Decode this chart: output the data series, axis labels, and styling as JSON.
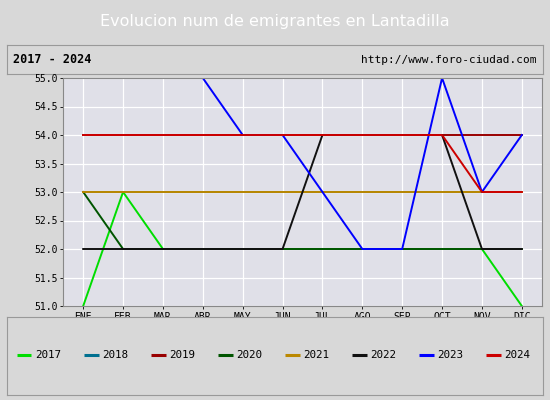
{
  "title": "Evolucion num de emigrantes en Lantadilla",
  "subtitle_left": "2017 - 2024",
  "subtitle_right": "http://www.foro-ciudad.com",
  "months": [
    "ENE",
    "FEB",
    "MAR",
    "ABR",
    "MAY",
    "JUN",
    "JUL",
    "AGO",
    "SEP",
    "OCT",
    "NOV",
    "DIC"
  ],
  "ylim": [
    51.0,
    55.0
  ],
  "yticks": [
    51.0,
    51.5,
    52.0,
    52.5,
    53.0,
    53.5,
    54.0,
    54.5,
    55.0
  ],
  "series": {
    "2017": {
      "color": "#00dd00",
      "data": [
        51.0,
        53.0,
        52.0,
        52.0,
        52.0,
        52.0,
        52.0,
        52.0,
        52.0,
        52.0,
        52.0,
        51.0
      ]
    },
    "2018": {
      "color": "#007090",
      "data": [
        53.0,
        53.0,
        53.0,
        53.0,
        53.0,
        53.0,
        53.0,
        53.0,
        53.0,
        53.0,
        53.0,
        53.0
      ]
    },
    "2019": {
      "color": "#990000",
      "data": [
        54.0,
        54.0,
        54.0,
        54.0,
        54.0,
        54.0,
        54.0,
        54.0,
        54.0,
        54.0,
        54.0,
        54.0
      ]
    },
    "2020": {
      "color": "#005500",
      "data": [
        53.0,
        52.0,
        52.0,
        52.0,
        52.0,
        52.0,
        52.0,
        52.0,
        52.0,
        52.0,
        52.0,
        52.0
      ]
    },
    "2021": {
      "color": "#bb8800",
      "data": [
        53.0,
        53.0,
        53.0,
        53.0,
        53.0,
        53.0,
        53.0,
        53.0,
        53.0,
        53.0,
        53.0,
        53.0
      ]
    },
    "2022": {
      "color": "#111111",
      "data": [
        52.0,
        52.0,
        52.0,
        52.0,
        52.0,
        52.0,
        54.0,
        54.0,
        54.0,
        54.0,
        52.0,
        52.0
      ]
    },
    "2023": {
      "color": "#0000ff",
      "data": [
        55.0,
        55.0,
        55.0,
        55.0,
        54.0,
        54.0,
        53.0,
        52.0,
        52.0,
        55.0,
        53.0,
        54.0
      ]
    },
    "2024": {
      "color": "#cc0000",
      "data": [
        54.0,
        54.0,
        54.0,
        54.0,
        54.0,
        54.0,
        54.0,
        54.0,
        54.0,
        54.0,
        53.0,
        53.0
      ]
    }
  },
  "title_bg_color": "#5b7fc4",
  "title_text_color": "#ffffff",
  "fig_bg_color": "#d8d8d8",
  "plot_bg_color": "#e0e0e8",
  "grid_color": "#ffffff",
  "border_color": "#888888"
}
